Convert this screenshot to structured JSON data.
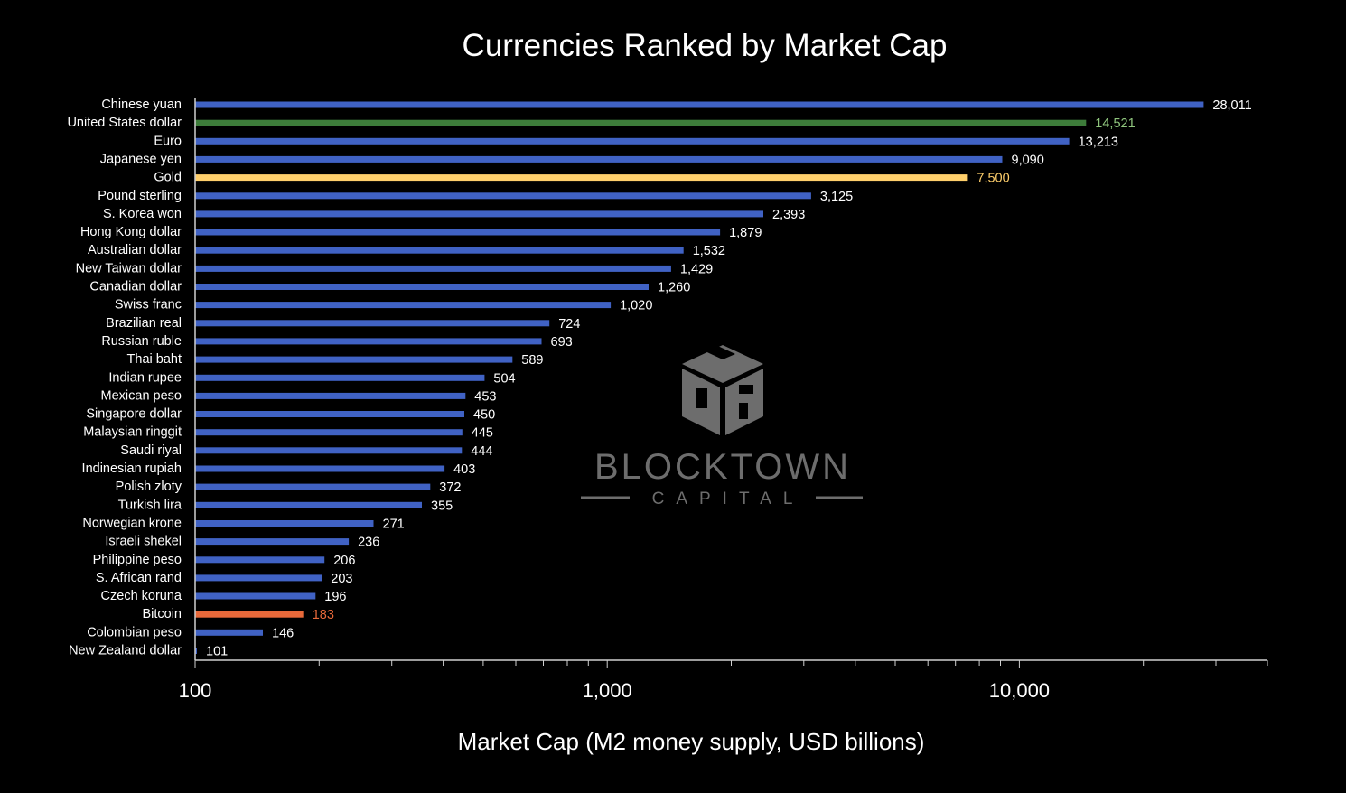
{
  "colors": {
    "background": "#000000",
    "default_bar": "#4062c4",
    "default_label": "#ffffff",
    "axis": "#cfcfcf",
    "watermark": "#6d6d6d",
    "highlights": {
      "United States dollar": "#3d7c3a",
      "Gold": "#ffcf6b",
      "Bitcoin": "#e8693a"
    },
    "highlight_labels": {
      "United States dollar": "#8fc57d",
      "Gold": "#ffcf6b",
      "Bitcoin": "#e8693a"
    }
  },
  "watermark": {
    "logo_icon": "cube-logo-icon",
    "brand": "BLOCKTOWN",
    "sub": "CAPITAL"
  },
  "chart_data": {
    "type": "bar",
    "orientation": "horizontal",
    "title": "Currencies Ranked by Market Cap",
    "xlabel": "Market Cap (M2 money supply, USD billions)",
    "ylabel": "",
    "x_scale": "log",
    "xlim": [
      100,
      40000
    ],
    "x_ticks": [
      100,
      1000,
      10000
    ],
    "x_tick_labels": [
      "100",
      "1,000",
      "10,000"
    ],
    "grid": false,
    "legend": "none",
    "categories": [
      "Chinese yuan",
      "United States dollar",
      "Euro",
      "Japanese yen",
      "Gold",
      "Pound sterling",
      "S. Korea won",
      "Hong Kong dollar",
      "Australian dollar",
      "New Taiwan dollar",
      "Canadian dollar",
      "Swiss franc",
      "Brazilian real",
      "Russian ruble",
      "Thai baht",
      "Indian rupee",
      "Mexican peso",
      "Singapore dollar",
      "Malaysian ringgit",
      "Saudi riyal",
      "Indinesian rupiah",
      "Polish zloty",
      "Turkish lira",
      "Norwegian krone",
      "Israeli shekel",
      "Philippine peso",
      "S. African rand",
      "Czech koruna",
      "Bitcoin",
      "Colombian peso",
      "New Zealand dollar"
    ],
    "values": [
      28011,
      14521,
      13213,
      9090,
      7500,
      3125,
      2393,
      1879,
      1532,
      1429,
      1260,
      1020,
      724,
      693,
      589,
      504,
      453,
      450,
      445,
      444,
      403,
      372,
      355,
      271,
      236,
      206,
      203,
      196,
      183,
      146,
      101
    ],
    "value_labels": [
      "28,011",
      "14,521",
      "13,213",
      "9,090",
      "7,500",
      "3,125",
      "2,393",
      "1,879",
      "1,532",
      "1,429",
      "1,260",
      "1,020",
      "724",
      "693",
      "589",
      "504",
      "453",
      "450",
      "445",
      "444",
      "403",
      "372",
      "355",
      "271",
      "236",
      "206",
      "203",
      "196",
      "183",
      "146",
      "101"
    ]
  }
}
